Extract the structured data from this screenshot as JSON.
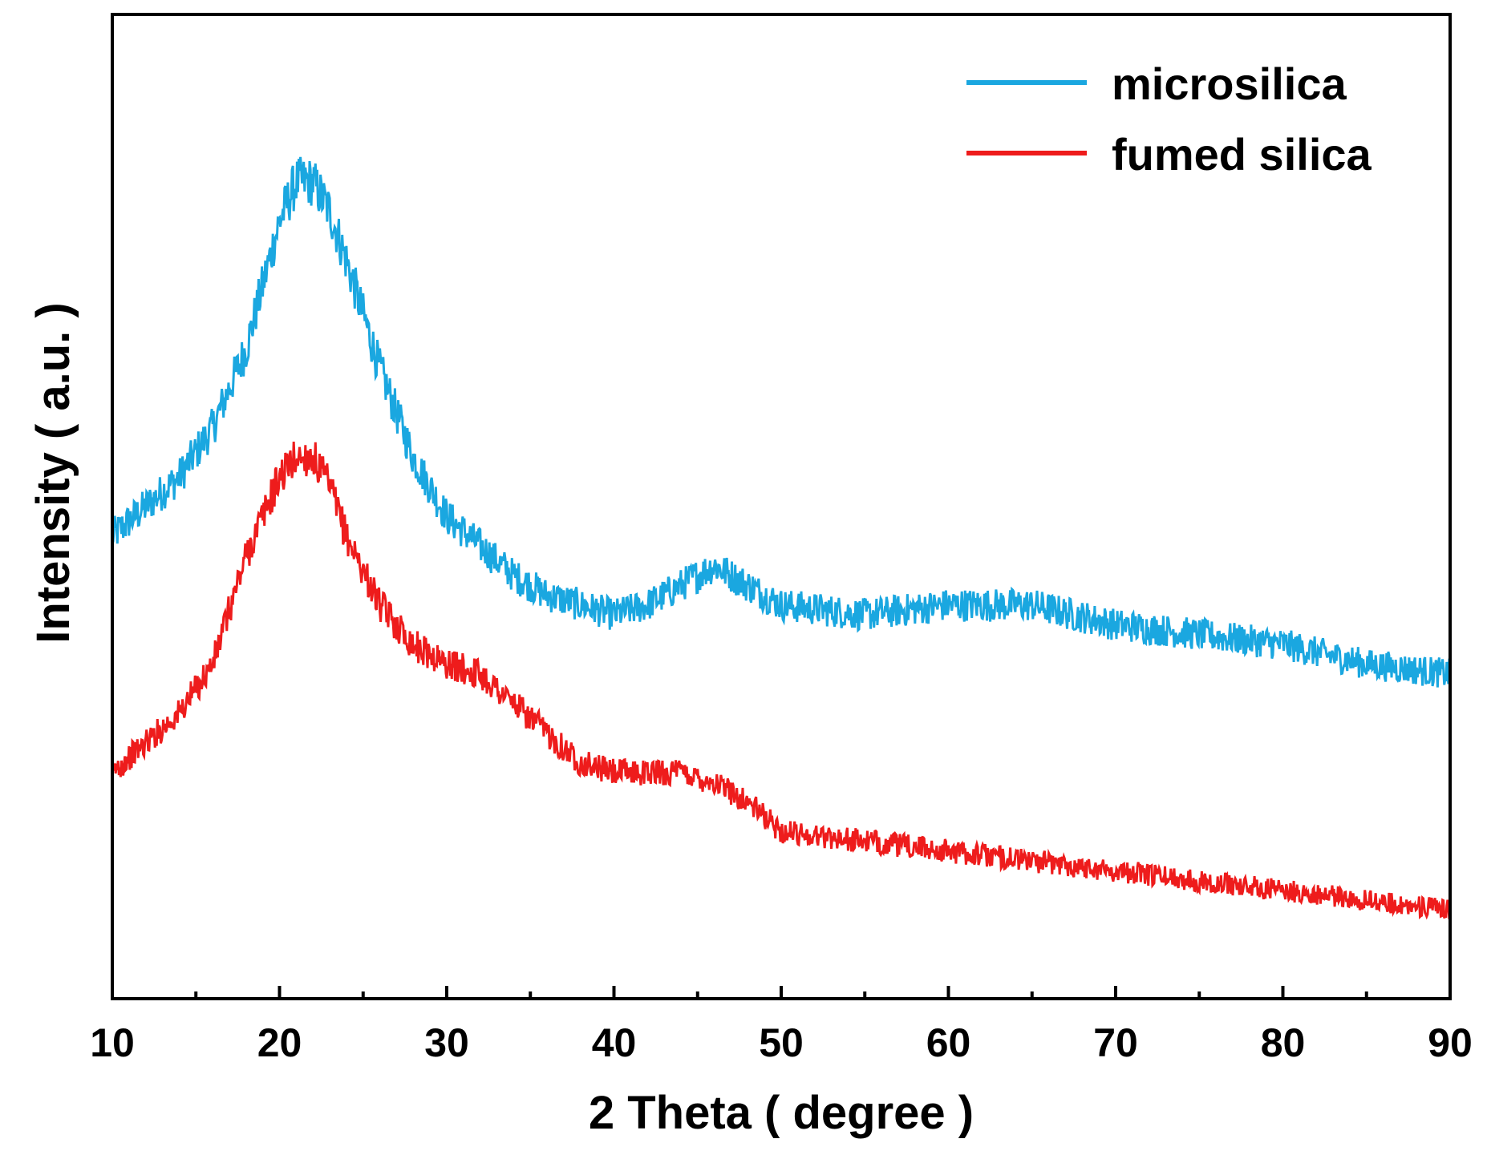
{
  "chart_data": {
    "type": "line",
    "title": "",
    "xlabel": "2 Theta ( degree )",
    "ylabel": "Intensity ( a.u. )",
    "xlim": [
      10,
      90
    ],
    "ylim": [
      0,
      100
    ],
    "x_ticks": [
      10,
      20,
      30,
      40,
      50,
      60,
      70,
      80,
      90
    ],
    "y_ticks_labeled": false,
    "grid": false,
    "legend": "top-right",
    "x": [
      10,
      12,
      14,
      16,
      18,
      20,
      21,
      22,
      23,
      24,
      26,
      28,
      30,
      32,
      34,
      36,
      38,
      40,
      42,
      44,
      46,
      48,
      50,
      55,
      60,
      65,
      70,
      75,
      80,
      85,
      90
    ],
    "series": [
      {
        "name": "microsilica",
        "color": "#1aa7e0",
        "values": [
          47,
          50,
          53,
          58,
          66,
          79,
          83,
          83,
          80,
          75,
          64,
          55,
          49,
          46,
          43,
          41,
          40,
          39,
          40,
          42,
          44,
          42,
          40,
          39,
          40,
          40,
          38,
          37,
          36,
          34,
          33
        ]
      },
      {
        "name": "fumed silica",
        "color": "#ee1c1c",
        "values": [
          23,
          26,
          29,
          34,
          45,
          53,
          55,
          55,
          52,
          47,
          40,
          36,
          34,
          33,
          30,
          27,
          24,
          23,
          23,
          23,
          22,
          20,
          17,
          16,
          15,
          14,
          13,
          12,
          11,
          10,
          9
        ]
      }
    ]
  }
}
